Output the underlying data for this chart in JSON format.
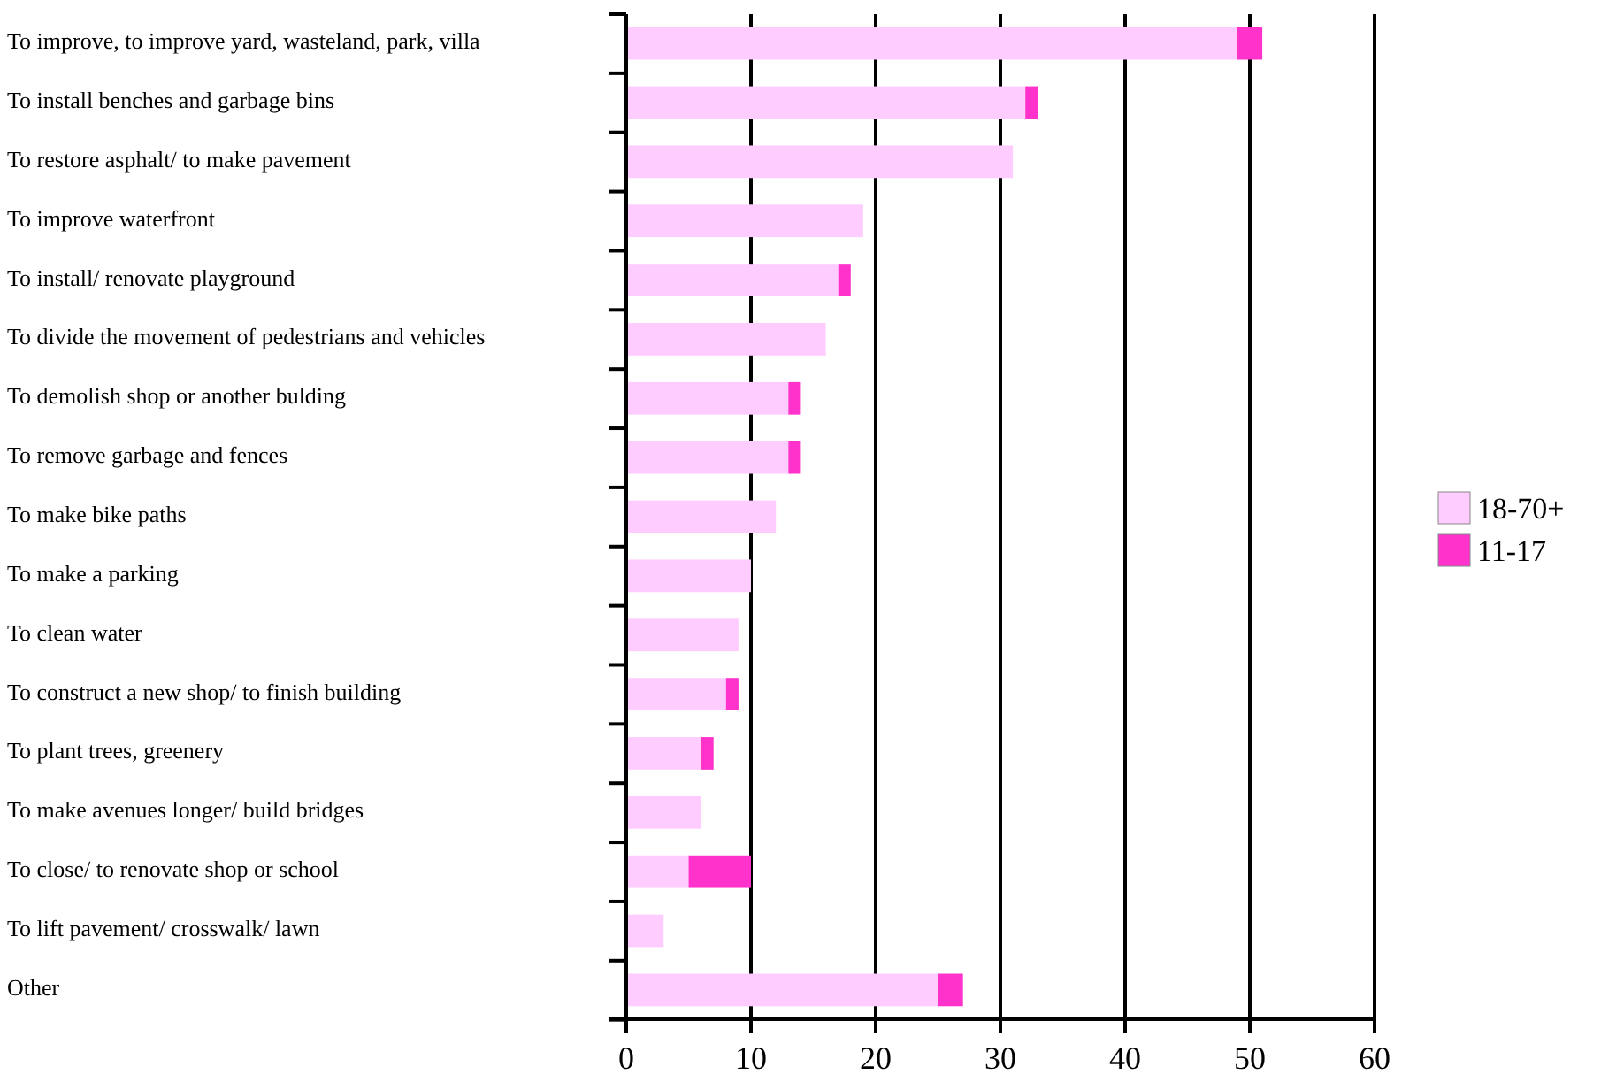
{
  "chart_data": {
    "type": "bar",
    "orientation": "horizontal",
    "stacked": true,
    "categories": [
      "To improve, to improve yard, wasteland, park, villa",
      "To install benches and garbage bins",
      "To restore asphalt/ to make pavement",
      "To improve waterfront",
      "To install/ renovate playground",
      "To divide the movement of pedestrians and vehicles",
      "To demolish shop or another bulding",
      "To remove garbage and fences",
      "To make bike paths",
      "To make a parking",
      "To clean water",
      "To construct a new shop/ to finish building",
      "To plant trees, greenery",
      "To make avenues longer/ build bridges",
      "To close/ to renovate shop or school",
      "To lift pavement/ crosswalk/ lawn",
      "Other"
    ],
    "series": [
      {
        "name": "18-70+",
        "color": "#ffccff",
        "values": [
          49,
          32,
          31,
          19,
          17,
          16,
          13,
          13,
          12,
          10,
          9,
          8,
          6,
          6,
          5,
          3,
          25
        ]
      },
      {
        "name": "11-17",
        "color": "#ff33cc",
        "values": [
          2,
          1,
          0,
          0,
          1,
          0,
          1,
          1,
          0,
          0,
          0,
          1,
          1,
          0,
          5,
          0,
          2
        ]
      }
    ],
    "xlim": [
      0,
      60
    ],
    "xticks": [
      0,
      10,
      20,
      30,
      40,
      50,
      60
    ],
    "grid": "x",
    "legend": "right"
  }
}
